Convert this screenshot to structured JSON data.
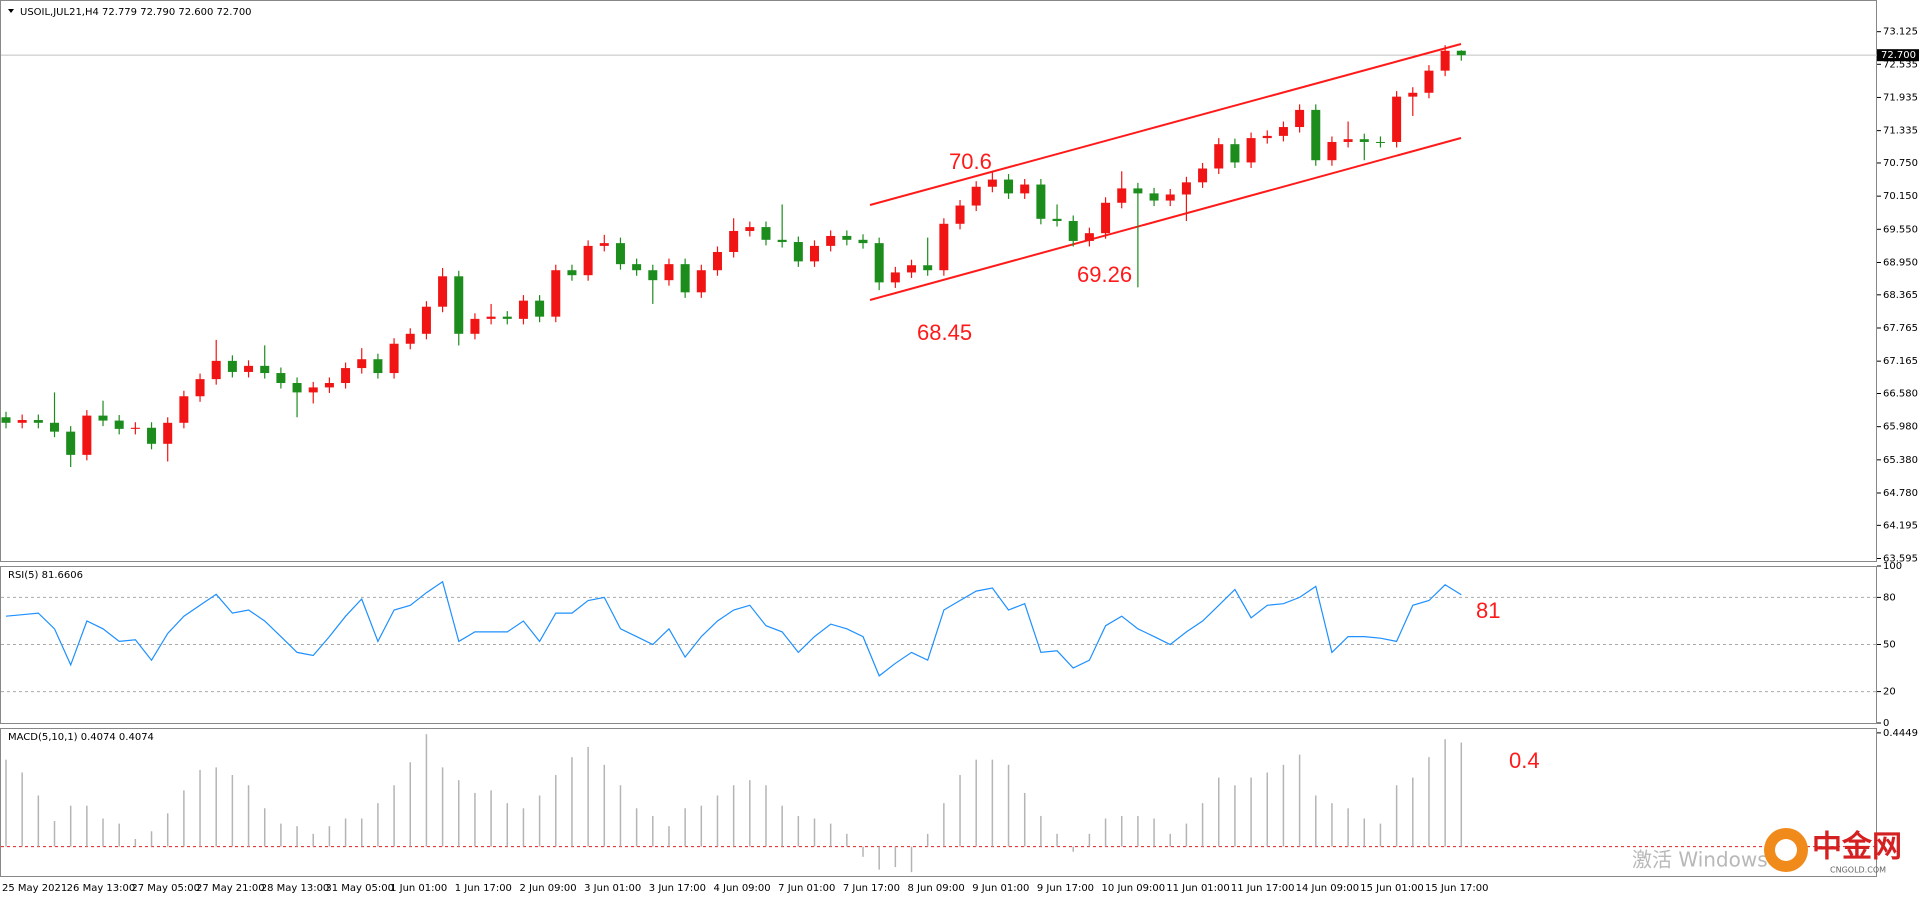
{
  "chart_data": [
    {
      "type": "candlestick",
      "title": "USOIL,JUL21,H4 72.779 72.790 72.600 72.700",
      "categories": [
        "25 May 2021",
        null,
        null,
        null,
        "26 May 13:00",
        null,
        null,
        null,
        "27 May 05:00",
        null,
        null,
        null,
        "27 May 21:00",
        null,
        null,
        null,
        "28 May 13:00",
        null,
        null,
        null,
        "31 May 05:00",
        null,
        null,
        null,
        "1 Jun 01:00",
        null,
        null,
        null,
        "1 Jun 17:00",
        null,
        null,
        null,
        "2 Jun 09:00",
        null,
        null,
        null,
        "3 Jun 01:00",
        null,
        null,
        null,
        "3 Jun 17:00",
        null,
        null,
        null,
        "4 Jun 09:00",
        null,
        null,
        null,
        "7 Jun 01:00",
        null,
        null,
        null,
        "7 Jun 17:00",
        null,
        null,
        null,
        "8 Jun 09:00",
        null,
        null,
        null,
        "9 Jun 01:00",
        null,
        null,
        null,
        "9 Jun 17:00",
        null,
        null,
        null,
        "10 Jun 09:00",
        null,
        null,
        null,
        "11 Jun 01:00",
        null,
        null,
        null,
        "11 Jun 17:00",
        null,
        null,
        null,
        "14 Jun 09:00",
        null,
        null,
        null,
        "15 Jun 01:00",
        null,
        null,
        null,
        "15 Jun 17:00",
        null,
        null
      ],
      "open": [
        66.15,
        66.05,
        66.1,
        66.05,
        65.89,
        65.47,
        66.18,
        66.09,
        65.94,
        65.96,
        65.67,
        66.05,
        66.53,
        66.84,
        67.17,
        66.97,
        67.08,
        66.95,
        66.77,
        66.6,
        66.69,
        66.77,
        67.04,
        67.2,
        66.95,
        67.48,
        67.66,
        68.15,
        68.7,
        67.66,
        67.93,
        67.97,
        67.93,
        68.26,
        67.97,
        68.81,
        68.72,
        69.25,
        69.3,
        68.92,
        68.81,
        68.63,
        68.92,
        68.41,
        68.81,
        69.14,
        69.52,
        69.59,
        69.36,
        69.32,
        68.97,
        69.25,
        69.43,
        69.36,
        69.3,
        68.59,
        68.77,
        68.9,
        68.81,
        69.65,
        69.98,
        70.32,
        70.45,
        70.2,
        70.36,
        69.74,
        69.7,
        69.34,
        69.48,
        70.03,
        70.29,
        70.2,
        70.07,
        70.18,
        70.4,
        70.65,
        71.09,
        70.76,
        71.2,
        71.24,
        71.4,
        71.71,
        70.8,
        71.13,
        71.18,
        71.13,
        71.13,
        71.95,
        72.02,
        72.42,
        72.78
      ],
      "high": [
        66.25,
        66.2,
        66.2,
        66.6,
        65.99,
        66.28,
        66.45,
        66.19,
        66.06,
        66.06,
        66.15,
        66.63,
        66.94,
        67.55,
        67.27,
        67.18,
        67.45,
        67.05,
        66.87,
        66.79,
        66.87,
        67.14,
        67.4,
        67.3,
        67.58,
        67.76,
        68.25,
        68.85,
        68.8,
        68.03,
        68.2,
        68.07,
        68.36,
        68.36,
        68.91,
        68.91,
        69.35,
        69.45,
        69.4,
        69.02,
        68.91,
        69.02,
        69.02,
        68.91,
        69.24,
        69.75,
        69.69,
        69.69,
        70.0,
        69.42,
        69.35,
        69.53,
        69.53,
        69.46,
        69.4,
        68.87,
        69.0,
        69.4,
        69.75,
        70.08,
        70.42,
        70.6,
        70.55,
        70.46,
        70.46,
        70.0,
        69.8,
        69.58,
        70.13,
        70.6,
        70.39,
        70.3,
        70.28,
        70.5,
        70.75,
        71.2,
        71.19,
        71.3,
        71.34,
        71.5,
        71.81,
        71.81,
        71.23,
        71.5,
        71.28,
        71.23,
        72.05,
        72.12,
        72.52,
        72.88,
        72.79
      ],
      "low": [
        65.95,
        65.95,
        65.95,
        65.79,
        65.25,
        65.37,
        65.99,
        65.84,
        65.84,
        65.57,
        65.35,
        65.95,
        66.43,
        66.74,
        66.87,
        66.87,
        66.85,
        66.67,
        66.15,
        66.4,
        66.59,
        66.67,
        66.94,
        66.85,
        66.85,
        67.38,
        67.56,
        68.05,
        67.45,
        67.56,
        67.83,
        67.83,
        67.83,
        67.87,
        67.87,
        68.62,
        68.62,
        69.15,
        68.82,
        68.71,
        68.2,
        68.53,
        68.31,
        68.31,
        68.71,
        69.04,
        69.42,
        69.26,
        69.22,
        68.87,
        68.87,
        69.15,
        69.26,
        69.2,
        68.45,
        68.49,
        68.67,
        68.71,
        68.71,
        69.55,
        69.88,
        70.22,
        70.1,
        70.1,
        69.64,
        69.6,
        69.24,
        69.24,
        69.38,
        69.93,
        68.5,
        69.97,
        69.97,
        69.7,
        70.3,
        70.55,
        70.66,
        70.66,
        71.1,
        71.14,
        71.3,
        70.7,
        70.7,
        71.03,
        70.8,
        71.03,
        71.03,
        71.6,
        71.92,
        72.32,
        72.6
      ],
      "close": [
        66.05,
        66.1,
        66.05,
        65.89,
        65.47,
        66.18,
        66.09,
        65.94,
        65.96,
        65.67,
        66.05,
        66.53,
        66.84,
        67.17,
        66.97,
        67.08,
        66.95,
        66.77,
        66.6,
        66.69,
        66.77,
        67.04,
        67.2,
        66.95,
        67.48,
        67.66,
        68.15,
        68.7,
        67.66,
        67.93,
        67.97,
        67.93,
        68.26,
        67.97,
        68.81,
        68.72,
        69.25,
        69.3,
        68.92,
        68.81,
        68.63,
        68.92,
        68.41,
        68.81,
        69.14,
        69.52,
        69.59,
        69.36,
        69.32,
        68.97,
        69.25,
        69.43,
        69.36,
        69.3,
        68.59,
        68.77,
        68.9,
        68.81,
        69.65,
        69.98,
        70.32,
        70.45,
        70.2,
        70.36,
        69.74,
        69.7,
        69.34,
        69.48,
        70.03,
        70.29,
        70.2,
        70.07,
        70.18,
        70.4,
        70.65,
        71.09,
        70.76,
        71.2,
        71.24,
        71.4,
        71.71,
        70.8,
        71.13,
        71.18,
        71.13,
        71.13,
        71.95,
        72.02,
        72.42,
        72.78,
        72.7
      ],
      "up_color": "#f01414",
      "down_color": "#1c8c1c",
      "ylim": [
        63.55,
        73.68
      ],
      "yticks": [
        73.125,
        72.535,
        71.935,
        71.335,
        {
          "value": 70.75,
          "label": "70.750"
        },
        {
          "value": 70.15,
          "label": "70.150"
        },
        {
          "value": 69.55,
          "label": "69.550"
        },
        {
          "value": 68.95,
          "label": "68.950"
        },
        68.365,
        67.765,
        67.165,
        {
          "value": 66.58,
          "label": "66.580"
        },
        {
          "value": 65.98,
          "label": "65.980"
        },
        {
          "value": 65.38,
          "label": "65.380"
        },
        {
          "value": 64.78,
          "label": "64.780"
        },
        64.195,
        63.595
      ],
      "current_price": {
        "value": 72.7,
        "label": "72.700"
      },
      "annotations": [
        "70.6",
        "68.45",
        "69.26"
      ]
    },
    {
      "type": "line",
      "title": "RSI(5) 81.6606",
      "color": "#1e90ff",
      "values": [
        68,
        69,
        70,
        60,
        37,
        65,
        60,
        52,
        53,
        40,
        57,
        68,
        75,
        82,
        70,
        72,
        65,
        55,
        45,
        43,
        55,
        68,
        79,
        52,
        72,
        75,
        83,
        90,
        52,
        58,
        58,
        58,
        65,
        52,
        70,
        70,
        78,
        80,
        60,
        55,
        50,
        60,
        42,
        55,
        65,
        72,
        75,
        62,
        58,
        45,
        55,
        63,
        60,
        55,
        30,
        38,
        45,
        40,
        72,
        78,
        84,
        86,
        72,
        76,
        45,
        46,
        35,
        40,
        62,
        68,
        60,
        55,
        50,
        58,
        65,
        75,
        85,
        67,
        75,
        76,
        80,
        87,
        45,
        55,
        55,
        54,
        52,
        75,
        78,
        88,
        81.66
      ],
      "ylim": [
        0,
        100
      ],
      "yticks": [
        100,
        80,
        50,
        20,
        0
      ],
      "levels": [
        80,
        50,
        20
      ],
      "annotations": [
        "81"
      ]
    },
    {
      "type": "bar",
      "title": "MACD(5,10,1) 0.4074 0.4074",
      "color": "#b4b4b4",
      "values": [
        0.34,
        0.29,
        0.2,
        0.1,
        0.16,
        0.16,
        0.11,
        0.09,
        0.03,
        0.06,
        0.13,
        0.22,
        0.3,
        0.31,
        0.28,
        0.24,
        0.15,
        0.09,
        0.08,
        0.05,
        0.08,
        0.11,
        0.11,
        0.17,
        0.24,
        0.33,
        0.44,
        0.31,
        0.26,
        0.21,
        0.22,
        0.17,
        0.15,
        0.2,
        0.28,
        0.35,
        0.39,
        0.32,
        0.24,
        0.15,
        0.12,
        0.08,
        0.15,
        0.16,
        0.2,
        0.24,
        0.26,
        0.24,
        0.16,
        0.12,
        0.11,
        0.09,
        0.05,
        -0.04,
        -0.09,
        -0.08,
        -0.1,
        0.05,
        0.17,
        0.28,
        0.34,
        0.34,
        0.32,
        0.21,
        0.12,
        0.05,
        -0.02,
        0.05,
        0.11,
        0.12,
        0.12,
        0.11,
        0.05,
        0.09,
        0.17,
        0.27,
        0.24,
        0.27,
        0.29,
        0.32,
        0.36,
        0.2,
        0.17,
        0.15,
        0.11,
        0.09,
        0.24,
        0.27,
        0.35,
        0.42,
        0.4074
      ],
      "ylim": [
        -0.115,
        0.464
      ],
      "yticks": [
        0.4449
      ],
      "levels": [
        0
      ],
      "annotations": [
        "0.4"
      ]
    }
  ],
  "watermark": {
    "activate": "激活 Windows",
    "brand": "中金网",
    "site": "CNGOLD.COM"
  }
}
